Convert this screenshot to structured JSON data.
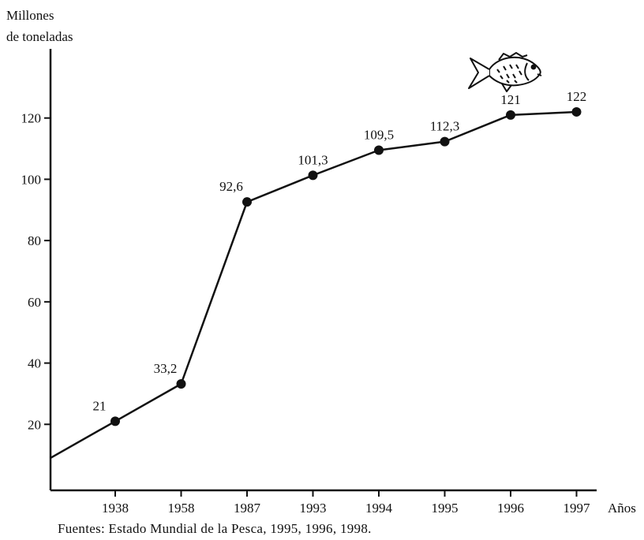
{
  "chart_data": {
    "type": "line",
    "ylabel_line1": "Millones",
    "ylabel_line2": "de toneladas",
    "xlabel": "Años",
    "categories": [
      "1938",
      "1958",
      "1987",
      "1993",
      "1994",
      "1995",
      "1996",
      "1997"
    ],
    "values": [
      21,
      33.2,
      92.6,
      101.3,
      109.5,
      112.3,
      121,
      122
    ],
    "data_labels": [
      "21",
      "33,2",
      "92,6",
      "101,3",
      "109,5",
      "112,3",
      "121",
      "122"
    ],
    "yticks": [
      20,
      40,
      60,
      80,
      100,
      120
    ],
    "ylim": [
      0,
      140
    ],
    "grid": false,
    "legend": "none",
    "line_color": "#111111",
    "decoration": "fish-icon"
  },
  "source": "Fuentes: Estado Mundial de la Pesca, 1995, 1996, 1998."
}
